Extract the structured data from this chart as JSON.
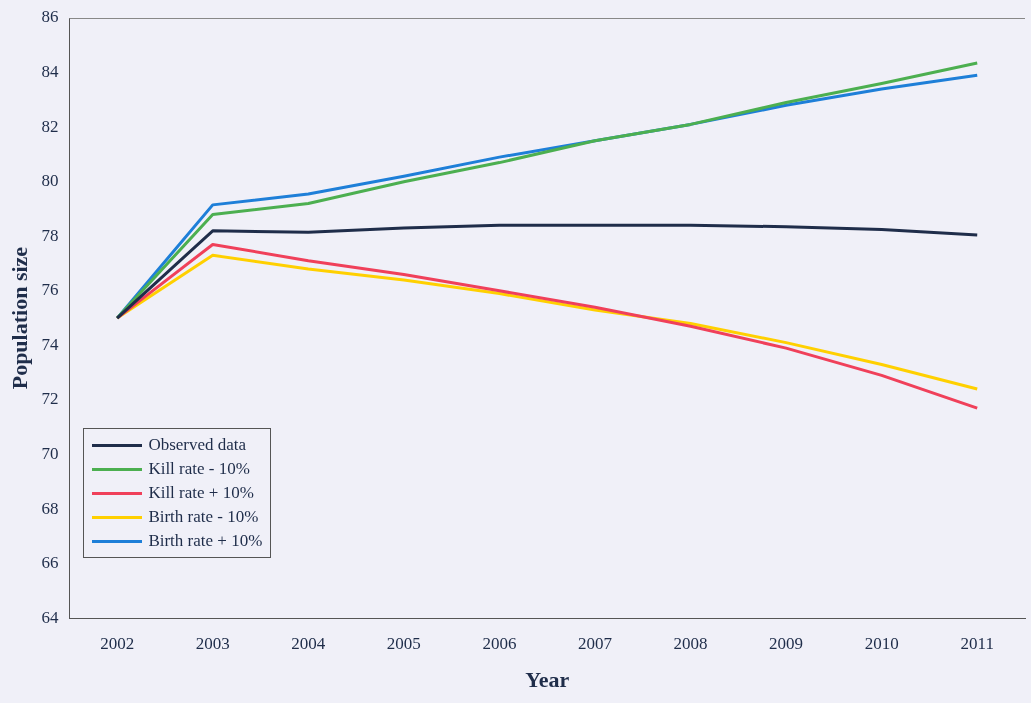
{
  "chart_data": {
    "type": "line",
    "xlabel": "Year",
    "ylabel": "Population size",
    "categories": [
      "2002",
      "2003",
      "2004",
      "2005",
      "2006",
      "2007",
      "2008",
      "2009",
      "2010",
      "2011"
    ],
    "series": [
      {
        "name": "Observed data",
        "color": "#1f2d4a",
        "values": [
          75,
          78.2,
          78.15,
          78.3,
          78.4,
          78.4,
          78.4,
          78.35,
          78.25,
          78.05
        ]
      },
      {
        "name": "Kill rate - 10%",
        "color": "#4caf50",
        "values": [
          75,
          78.8,
          79.2,
          80.0,
          80.7,
          81.5,
          82.1,
          82.9,
          83.6,
          84.35
        ]
      },
      {
        "name": "Kill rate + 10%",
        "color": "#f0405a",
        "values": [
          75,
          77.7,
          77.1,
          76.6,
          76.0,
          75.4,
          74.7,
          73.9,
          72.9,
          71.7
        ]
      },
      {
        "name": "Birth rate - 10%",
        "color": "#ffd000",
        "values": [
          75,
          77.3,
          76.8,
          76.4,
          75.9,
          75.3,
          74.8,
          74.1,
          73.3,
          72.4
        ]
      },
      {
        "name": "Birth rate + 10%",
        "color": "#1e7fd8",
        "values": [
          75,
          79.15,
          79.55,
          80.2,
          80.9,
          81.5,
          82.1,
          82.8,
          83.4,
          83.9
        ]
      }
    ],
    "ylim": [
      64,
      86
    ],
    "yticks": [
      64,
      66,
      68,
      70,
      72,
      74,
      76,
      78,
      80,
      82,
      84,
      86
    ],
    "grid": false,
    "legend": "bottom left",
    "marker": "none",
    "line_style": "solid"
  }
}
